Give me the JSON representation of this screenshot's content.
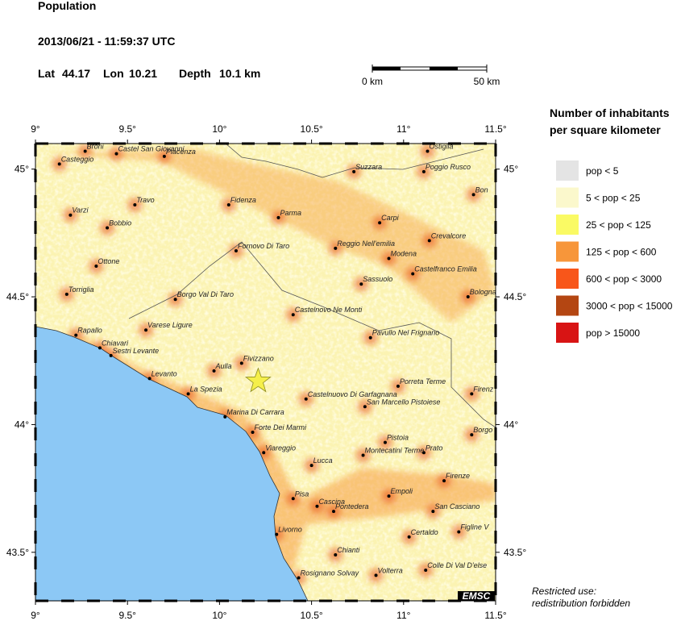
{
  "header": {
    "title": "Population",
    "datetime": "2013/06/21 - 11:59:37 UTC",
    "lat_label": "Lat",
    "lat": 44.17,
    "lon_label": "Lon",
    "lon": 10.21,
    "depth_label": "Depth",
    "depth": "10.1 km"
  },
  "scale_bar": {
    "start": "0 km",
    "end": "50 km"
  },
  "legend": {
    "title_line1": "Number of inhabitants",
    "title_line2": "per square kilometer",
    "items": [
      {
        "label": "pop < 5",
        "color": "#e4e4e4"
      },
      {
        "label": "5 < pop < 25",
        "color": "#fbf8cc"
      },
      {
        "label": "25 < pop < 125",
        "color": "#fafa64"
      },
      {
        "label": "125 < pop < 600",
        "color": "#f7963a"
      },
      {
        "label": "600 < pop < 3000",
        "color": "#f8561a"
      },
      {
        "label": "3000 < pop < 15000",
        "color": "#b44612"
      },
      {
        "label": "pop > 15000",
        "color": "#d81414"
      }
    ]
  },
  "map": {
    "xlim": [
      9,
      11.5
    ],
    "ylim": [
      43.31,
      45.1
    ],
    "xticks": [
      {
        "value": 9,
        "label": "9°"
      },
      {
        "value": 9.5,
        "label": "9.5°"
      },
      {
        "value": 10,
        "label": "10°"
      },
      {
        "value": 10.5,
        "label": "10.5°"
      },
      {
        "value": 11,
        "label": "11°"
      },
      {
        "value": 11.5,
        "label": "11.5°"
      }
    ],
    "yticks": [
      {
        "value": 45,
        "label": "45°"
      },
      {
        "value": 44.5,
        "label": "44.5°"
      },
      {
        "value": 44,
        "label": "44°"
      },
      {
        "value": 43.5,
        "label": "43.5°"
      }
    ],
    "cities": [
      {
        "name": "Broni",
        "lon": 9.27,
        "lat": 45.07
      },
      {
        "name": "Castel San Giovanni",
        "lon": 9.44,
        "lat": 45.06
      },
      {
        "name": "Piacenza",
        "lon": 9.7,
        "lat": 45.05
      },
      {
        "name": "Casteggio",
        "lon": 9.13,
        "lat": 45.02
      },
      {
        "name": "Ostiglia",
        "lon": 11.13,
        "lat": 45.07
      },
      {
        "name": "Suzzara",
        "lon": 10.73,
        "lat": 44.99
      },
      {
        "name": "Poggio Rusco",
        "lon": 11.11,
        "lat": 44.99
      },
      {
        "name": "Bon",
        "lon": 11.38,
        "lat": 44.9
      },
      {
        "name": "Travo",
        "lon": 9.54,
        "lat": 44.86
      },
      {
        "name": "Varzi",
        "lon": 9.19,
        "lat": 44.82
      },
      {
        "name": "Fidenza",
        "lon": 10.05,
        "lat": 44.86
      },
      {
        "name": "Parma",
        "lon": 10.32,
        "lat": 44.81
      },
      {
        "name": "Carpi",
        "lon": 10.87,
        "lat": 44.79
      },
      {
        "name": "Bobbio",
        "lon": 9.39,
        "lat": 44.77
      },
      {
        "name": "Fornovo Di Taro",
        "lon": 10.09,
        "lat": 44.68
      },
      {
        "name": "Reggio Nell'emilia",
        "lon": 10.63,
        "lat": 44.69
      },
      {
        "name": "Crevalcore",
        "lon": 11.14,
        "lat": 44.72
      },
      {
        "name": "Modena",
        "lon": 10.92,
        "lat": 44.65
      },
      {
        "name": "Castelfranco Emilia",
        "lon": 11.05,
        "lat": 44.59
      },
      {
        "name": "Ottone",
        "lon": 9.33,
        "lat": 44.62
      },
      {
        "name": "Sassuolo",
        "lon": 10.77,
        "lat": 44.55
      },
      {
        "name": "Bologna",
        "lon": 11.35,
        "lat": 44.5
      },
      {
        "name": "Torriglia",
        "lon": 9.17,
        "lat": 44.51
      },
      {
        "name": "Borgo Val Di Taro",
        "lon": 9.76,
        "lat": 44.49
      },
      {
        "name": "Castelnovo Ne Monti",
        "lon": 10.4,
        "lat": 44.43
      },
      {
        "name": "Varese Ligure",
        "lon": 9.6,
        "lat": 44.37
      },
      {
        "name": "Rapallo",
        "lon": 9.22,
        "lat": 44.35
      },
      {
        "name": "Pavullo Nel Frignano",
        "lon": 10.82,
        "lat": 44.34
      },
      {
        "name": "Chiavari",
        "lon": 9.35,
        "lat": 44.3
      },
      {
        "name": "Sestri Levante",
        "lon": 9.41,
        "lat": 44.27
      },
      {
        "name": "Fivizzano",
        "lon": 10.12,
        "lat": 44.24
      },
      {
        "name": "Aulla",
        "lon": 9.97,
        "lat": 44.21
      },
      {
        "name": "Levanto",
        "lon": 9.62,
        "lat": 44.18
      },
      {
        "name": "Porreta Terme",
        "lon": 10.97,
        "lat": 44.15
      },
      {
        "name": "Firenz",
        "lon": 11.37,
        "lat": 44.12
      },
      {
        "name": "La Spezia",
        "lon": 9.83,
        "lat": 44.12
      },
      {
        "name": "Castelnuovo Di Garfagnana",
        "lon": 10.47,
        "lat": 44.1
      },
      {
        "name": "San Marcello Pistoiese",
        "lon": 10.79,
        "lat": 44.07
      },
      {
        "name": "Marina Di Carrara",
        "lon": 10.03,
        "lat": 44.03
      },
      {
        "name": "Forte Dei Marmi",
        "lon": 10.18,
        "lat": 43.97
      },
      {
        "name": "Pistoia",
        "lon": 10.9,
        "lat": 43.93
      },
      {
        "name": "Borgo",
        "lon": 11.37,
        "lat": 43.96
      },
      {
        "name": "Viareggio",
        "lon": 10.24,
        "lat": 43.89
      },
      {
        "name": "Montecatini Terme",
        "lon": 10.78,
        "lat": 43.88
      },
      {
        "name": "Prato",
        "lon": 11.11,
        "lat": 43.89
      },
      {
        "name": "Lucca",
        "lon": 10.5,
        "lat": 43.84
      },
      {
        "name": "Firenze",
        "lon": 11.22,
        "lat": 43.78
      },
      {
        "name": "Pisa",
        "lon": 10.4,
        "lat": 43.71
      },
      {
        "name": "Empoli",
        "lon": 10.92,
        "lat": 43.72
      },
      {
        "name": "Cascina",
        "lon": 10.53,
        "lat": 43.68
      },
      {
        "name": "Pontedera",
        "lon": 10.62,
        "lat": 43.66
      },
      {
        "name": "San Casciano",
        "lon": 11.16,
        "lat": 43.66
      },
      {
        "name": "Figline V",
        "lon": 11.3,
        "lat": 43.58
      },
      {
        "name": "Certaldo",
        "lon": 11.03,
        "lat": 43.56
      },
      {
        "name": "Livorno",
        "lon": 10.31,
        "lat": 43.57
      },
      {
        "name": "Chianti",
        "lon": 10.63,
        "lat": 43.49
      },
      {
        "name": "Colle Di Val D'else",
        "lon": 11.12,
        "lat": 43.43
      },
      {
        "name": "Volterra",
        "lon": 10.85,
        "lat": 43.41
      },
      {
        "name": "Rosignano Solvay",
        "lon": 10.43,
        "lat": 43.4
      }
    ]
  },
  "footer": {
    "line1": "Restricted use:",
    "line2": "redistribution forbidden",
    "logo": "EMSC"
  }
}
